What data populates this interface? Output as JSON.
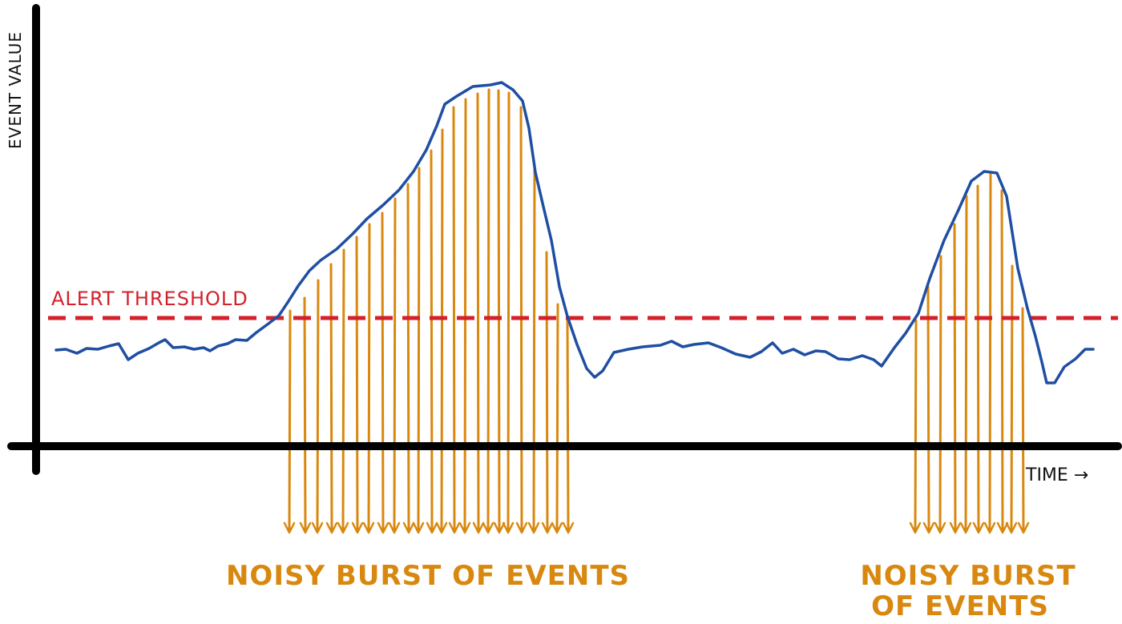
{
  "labels": {
    "y_axis": "EVENT VALUE",
    "x_axis": "TIME →",
    "threshold": "ALERT THRESHOLD",
    "burst1": "NOISY BURST OF EVENTS",
    "burst2_line1": "NOISY BURST",
    "burst2_line2": "OF EVENTS"
  },
  "colors": {
    "axis": "#000000",
    "signal": "#1f4ea3",
    "threshold": "#d4202a",
    "events": "#d9880f",
    "text": "#111111"
  },
  "icons": {
    "event_arrow": "arrow-down-icon",
    "axis_arrow": "arrow-right-icon"
  }
}
